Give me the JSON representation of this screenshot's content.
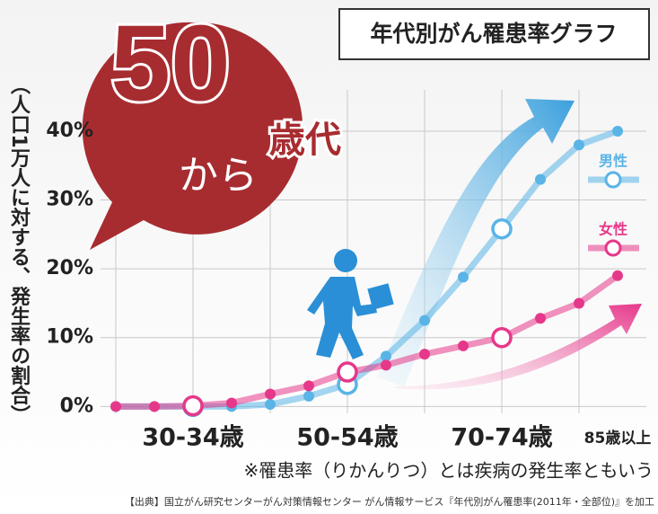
{
  "chart_data": {
    "type": "line",
    "title": "年代別がん罹患率グラフ",
    "headline": {
      "number": "50",
      "suffix": "歳代",
      "particle": "から"
    },
    "y_label": "（人口1万人に対する、発生率の割合）",
    "note": "※罹患率（りかんりつ）とは疾病の発生率ともいう",
    "source": "【出典】国立がん研究センターがん対策情報センター がん情報サービス『年代別がん罹患率(2011年・全部位)』を加工",
    "categories": [
      null,
      null,
      "30-34歳",
      null,
      null,
      null,
      "50-54歳",
      null,
      null,
      null,
      "70-74歳",
      null,
      null,
      "85歳以上"
    ],
    "series": [
      {
        "name": "男性",
        "color": "#5ab4e6",
        "values": [
          0,
          0,
          0,
          0,
          0.3,
          1.5,
          3.2,
          7.3,
          12.5,
          18.8,
          25.8,
          33,
          38,
          40
        ]
      },
      {
        "name": "女性",
        "color": "#e6388a",
        "values": [
          0,
          0,
          0.1,
          0.5,
          1.8,
          3,
          5,
          6,
          7.6,
          8.8,
          10,
          12.8,
          15,
          19
        ]
      }
    ],
    "ylim": [
      -1,
      46
    ],
    "yticks": [
      {
        "value": 0,
        "label": "0%"
      },
      {
        "value": 10,
        "label": "10%"
      },
      {
        "value": 20,
        "label": "20%"
      },
      {
        "value": 30,
        "label": "30%"
      },
      {
        "value": 40,
        "label": "40%"
      }
    ],
    "grid": true
  }
}
